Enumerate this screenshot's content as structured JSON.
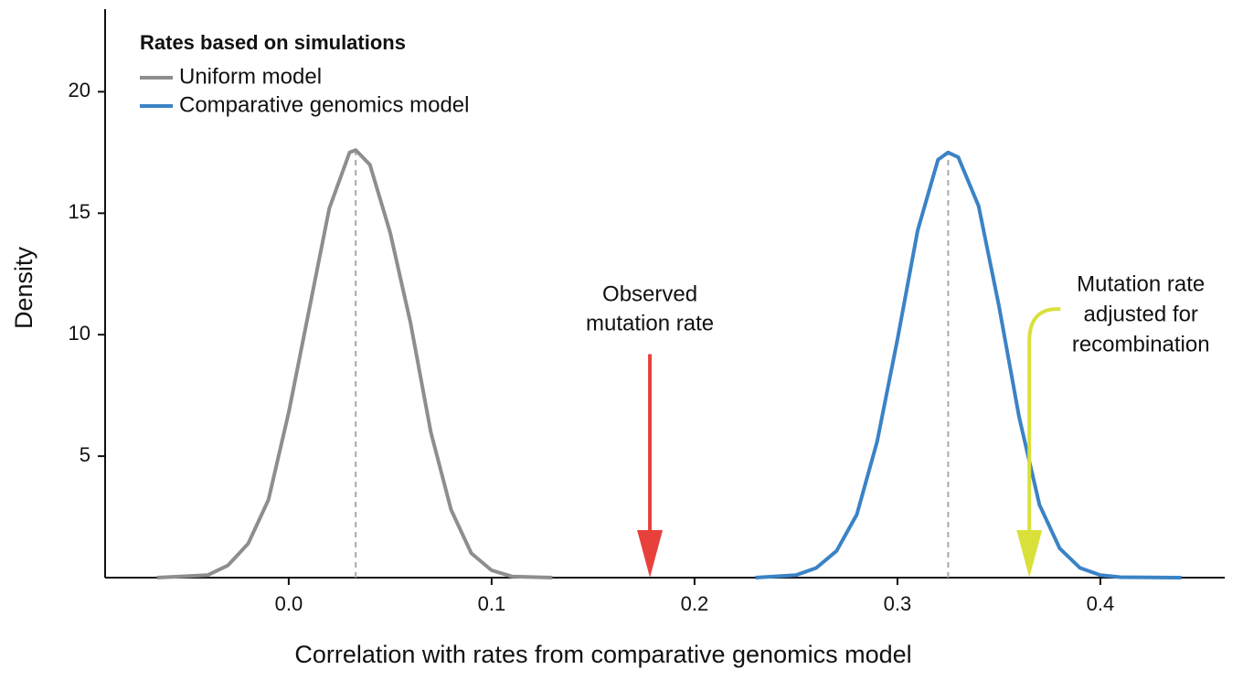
{
  "chart_data": {
    "type": "density",
    "xlabel": "Correlation with rates from comparative genomics model",
    "ylabel": "Density",
    "xlim": [
      -0.0905,
      0.4613
    ],
    "ylim": [
      0,
      23.4
    ],
    "xticks": [
      {
        "value": 0,
        "label": "0.0"
      },
      0.1,
      0.2,
      0.3,
      0.4
    ],
    "yticks": [
      5,
      10,
      15,
      20
    ],
    "legend_title": "Rates based on simulations",
    "legend_position": "top-left",
    "series": [
      {
        "name": "Uniform model",
        "color": "#8c8f8c",
        "x": [
          -0.065,
          -0.04,
          -0.03,
          -0.02,
          -0.01,
          0,
          0.01,
          0.02,
          0.03,
          0.033,
          0.04,
          0.05,
          0.06,
          0.07,
          0.08,
          0.09,
          0.1,
          0.11,
          0.13
        ],
        "values": [
          0,
          0.1,
          0.5,
          1.4,
          3.2,
          6.8,
          11,
          15.2,
          17.5,
          17.6,
          17.0,
          14.2,
          10.5,
          6.0,
          2.8,
          1.0,
          0.3,
          0.05,
          0
        ],
        "mean": 0.033,
        "peak": 17.6
      },
      {
        "name": "Comparative genomics model",
        "color": "#3a83c5",
        "x": [
          0.23,
          0.25,
          0.26,
          0.27,
          0.28,
          0.29,
          0.3,
          0.31,
          0.32,
          0.325,
          0.33,
          0.34,
          0.35,
          0.36,
          0.37,
          0.38,
          0.39,
          0.4,
          0.41,
          0.44
        ],
        "values": [
          0,
          0.1,
          0.4,
          1.1,
          2.6,
          5.6,
          9.8,
          14.3,
          17.2,
          17.5,
          17.3,
          15.3,
          11.2,
          6.6,
          3.0,
          1.2,
          0.4,
          0.1,
          0.02,
          0
        ],
        "mean": 0.325,
        "peak": 17.5
      }
    ],
    "annotations": [
      {
        "text": [
          "Observed",
          "mutation rate"
        ],
        "x": 0.178,
        "y": 9.2,
        "color": "#e8413c"
      },
      {
        "text": [
          "Mutation rate",
          "adjusted for",
          "recombination"
        ],
        "x": 0.365,
        "y": 10.3,
        "color": "#d9e03a"
      }
    ]
  }
}
